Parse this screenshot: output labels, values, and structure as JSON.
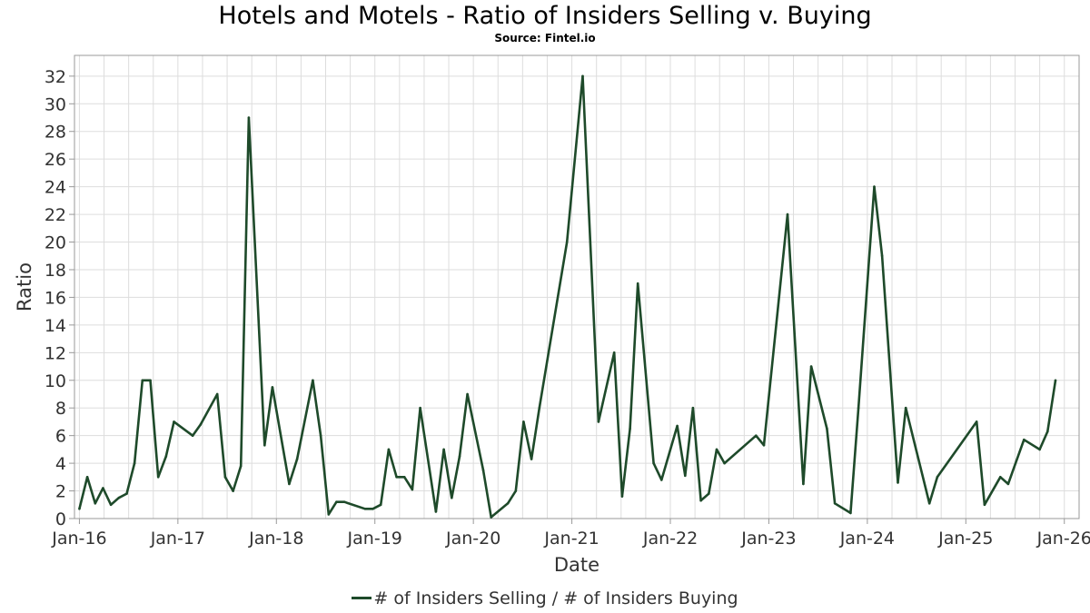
{
  "title": "Hotels and Motels - Ratio of Insiders Selling v. Buying",
  "subtitle": "Source: Fintel.io",
  "colors": {
    "line": "#1e4a2a",
    "grid": "#dddddd",
    "axis": "#999999",
    "text": "#333333"
  },
  "chart_data": {
    "type": "line",
    "title": "Hotels and Motels - Ratio of Insiders Selling v. Buying",
    "xlabel": "Date",
    "ylabel": "Ratio",
    "ylim": [
      0,
      33.5
    ],
    "xlim": [
      2015.95,
      2026.15
    ],
    "grid": true,
    "legend_position": "bottom-center",
    "y_ticks": [
      0,
      2,
      4,
      6,
      8,
      10,
      12,
      14,
      16,
      18,
      20,
      22,
      24,
      26,
      28,
      30,
      32
    ],
    "x_ticks": [
      {
        "label": "Jan-16",
        "value": 2016
      },
      {
        "label": "Jan-17",
        "value": 2017
      },
      {
        "label": "Jan-18",
        "value": 2018
      },
      {
        "label": "Jan-19",
        "value": 2019
      },
      {
        "label": "Jan-20",
        "value": 2020
      },
      {
        "label": "Jan-21",
        "value": 2021
      },
      {
        "label": "Jan-22",
        "value": 2022
      },
      {
        "label": "Jan-23",
        "value": 2023
      },
      {
        "label": "Jan-24",
        "value": 2024
      },
      {
        "label": "Jan-25",
        "value": 2025
      },
      {
        "label": "Jan-26",
        "value": 2026
      }
    ],
    "series": [
      {
        "name": "# of Insiders Selling / # of Insiders Buying",
        "points": [
          [
            2016.0,
            0.7
          ],
          [
            2016.08,
            3.0
          ],
          [
            2016.16,
            1.1
          ],
          [
            2016.24,
            2.2
          ],
          [
            2016.32,
            1.0
          ],
          [
            2016.4,
            1.5
          ],
          [
            2016.48,
            1.8
          ],
          [
            2016.56,
            4.0
          ],
          [
            2016.64,
            10.0
          ],
          [
            2016.72,
            10.0
          ],
          [
            2016.8,
            3.0
          ],
          [
            2016.88,
            4.5
          ],
          [
            2016.96,
            7.0
          ],
          [
            2017.15,
            6.0
          ],
          [
            2017.23,
            6.8
          ],
          [
            2017.4,
            9.0
          ],
          [
            2017.48,
            3.0
          ],
          [
            2017.56,
            2.0
          ],
          [
            2017.64,
            3.8
          ],
          [
            2017.72,
            29.0
          ],
          [
            2017.88,
            5.3
          ],
          [
            2017.96,
            9.5
          ],
          [
            2018.13,
            2.5
          ],
          [
            2018.21,
            4.3
          ],
          [
            2018.37,
            10.0
          ],
          [
            2018.45,
            6.0
          ],
          [
            2018.53,
            0.3
          ],
          [
            2018.61,
            1.2
          ],
          [
            2018.69,
            1.2
          ],
          [
            2018.9,
            0.7
          ],
          [
            2018.98,
            0.7
          ],
          [
            2019.06,
            1.0
          ],
          [
            2019.14,
            5.0
          ],
          [
            2019.22,
            3.0
          ],
          [
            2019.3,
            3.0
          ],
          [
            2019.38,
            2.1
          ],
          [
            2019.46,
            8.0
          ],
          [
            2019.62,
            0.5
          ],
          [
            2019.7,
            5.0
          ],
          [
            2019.78,
            1.5
          ],
          [
            2019.86,
            4.5
          ],
          [
            2019.94,
            9.0
          ],
          [
            2020.1,
            3.5
          ],
          [
            2020.18,
            0.1
          ],
          [
            2020.35,
            1.1
          ],
          [
            2020.43,
            2.0
          ],
          [
            2020.51,
            7.0
          ],
          [
            2020.59,
            4.3
          ],
          [
            2020.67,
            8.0
          ],
          [
            2020.95,
            20.0
          ],
          [
            2021.11,
            32.0
          ],
          [
            2021.27,
            7.0
          ],
          [
            2021.43,
            12.0
          ],
          [
            2021.51,
            1.6
          ],
          [
            2021.59,
            6.5
          ],
          [
            2021.67,
            17.0
          ],
          [
            2021.83,
            4.0
          ],
          [
            2021.91,
            2.8
          ],
          [
            2022.07,
            6.7
          ],
          [
            2022.15,
            3.1
          ],
          [
            2022.23,
            8.0
          ],
          [
            2022.31,
            1.3
          ],
          [
            2022.39,
            1.8
          ],
          [
            2022.47,
            5.0
          ],
          [
            2022.55,
            4.0
          ],
          [
            2022.87,
            6.0
          ],
          [
            2022.95,
            5.3
          ],
          [
            2023.19,
            22.0
          ],
          [
            2023.35,
            2.5
          ],
          [
            2023.43,
            11.0
          ],
          [
            2023.59,
            6.5
          ],
          [
            2023.67,
            1.1
          ],
          [
            2023.83,
            0.4
          ],
          [
            2023.91,
            8.0
          ],
          [
            2024.07,
            24.0
          ],
          [
            2024.15,
            19.0
          ],
          [
            2024.31,
            2.6
          ],
          [
            2024.39,
            8.0
          ],
          [
            2024.63,
            1.1
          ],
          [
            2024.71,
            3.0
          ],
          [
            2025.11,
            7.0
          ],
          [
            2025.19,
            1.0
          ],
          [
            2025.35,
            3.0
          ],
          [
            2025.43,
            2.5
          ],
          [
            2025.59,
            5.7
          ],
          [
            2025.75,
            5.0
          ],
          [
            2025.83,
            6.3
          ],
          [
            2025.91,
            10.0
          ]
        ]
      }
    ]
  }
}
